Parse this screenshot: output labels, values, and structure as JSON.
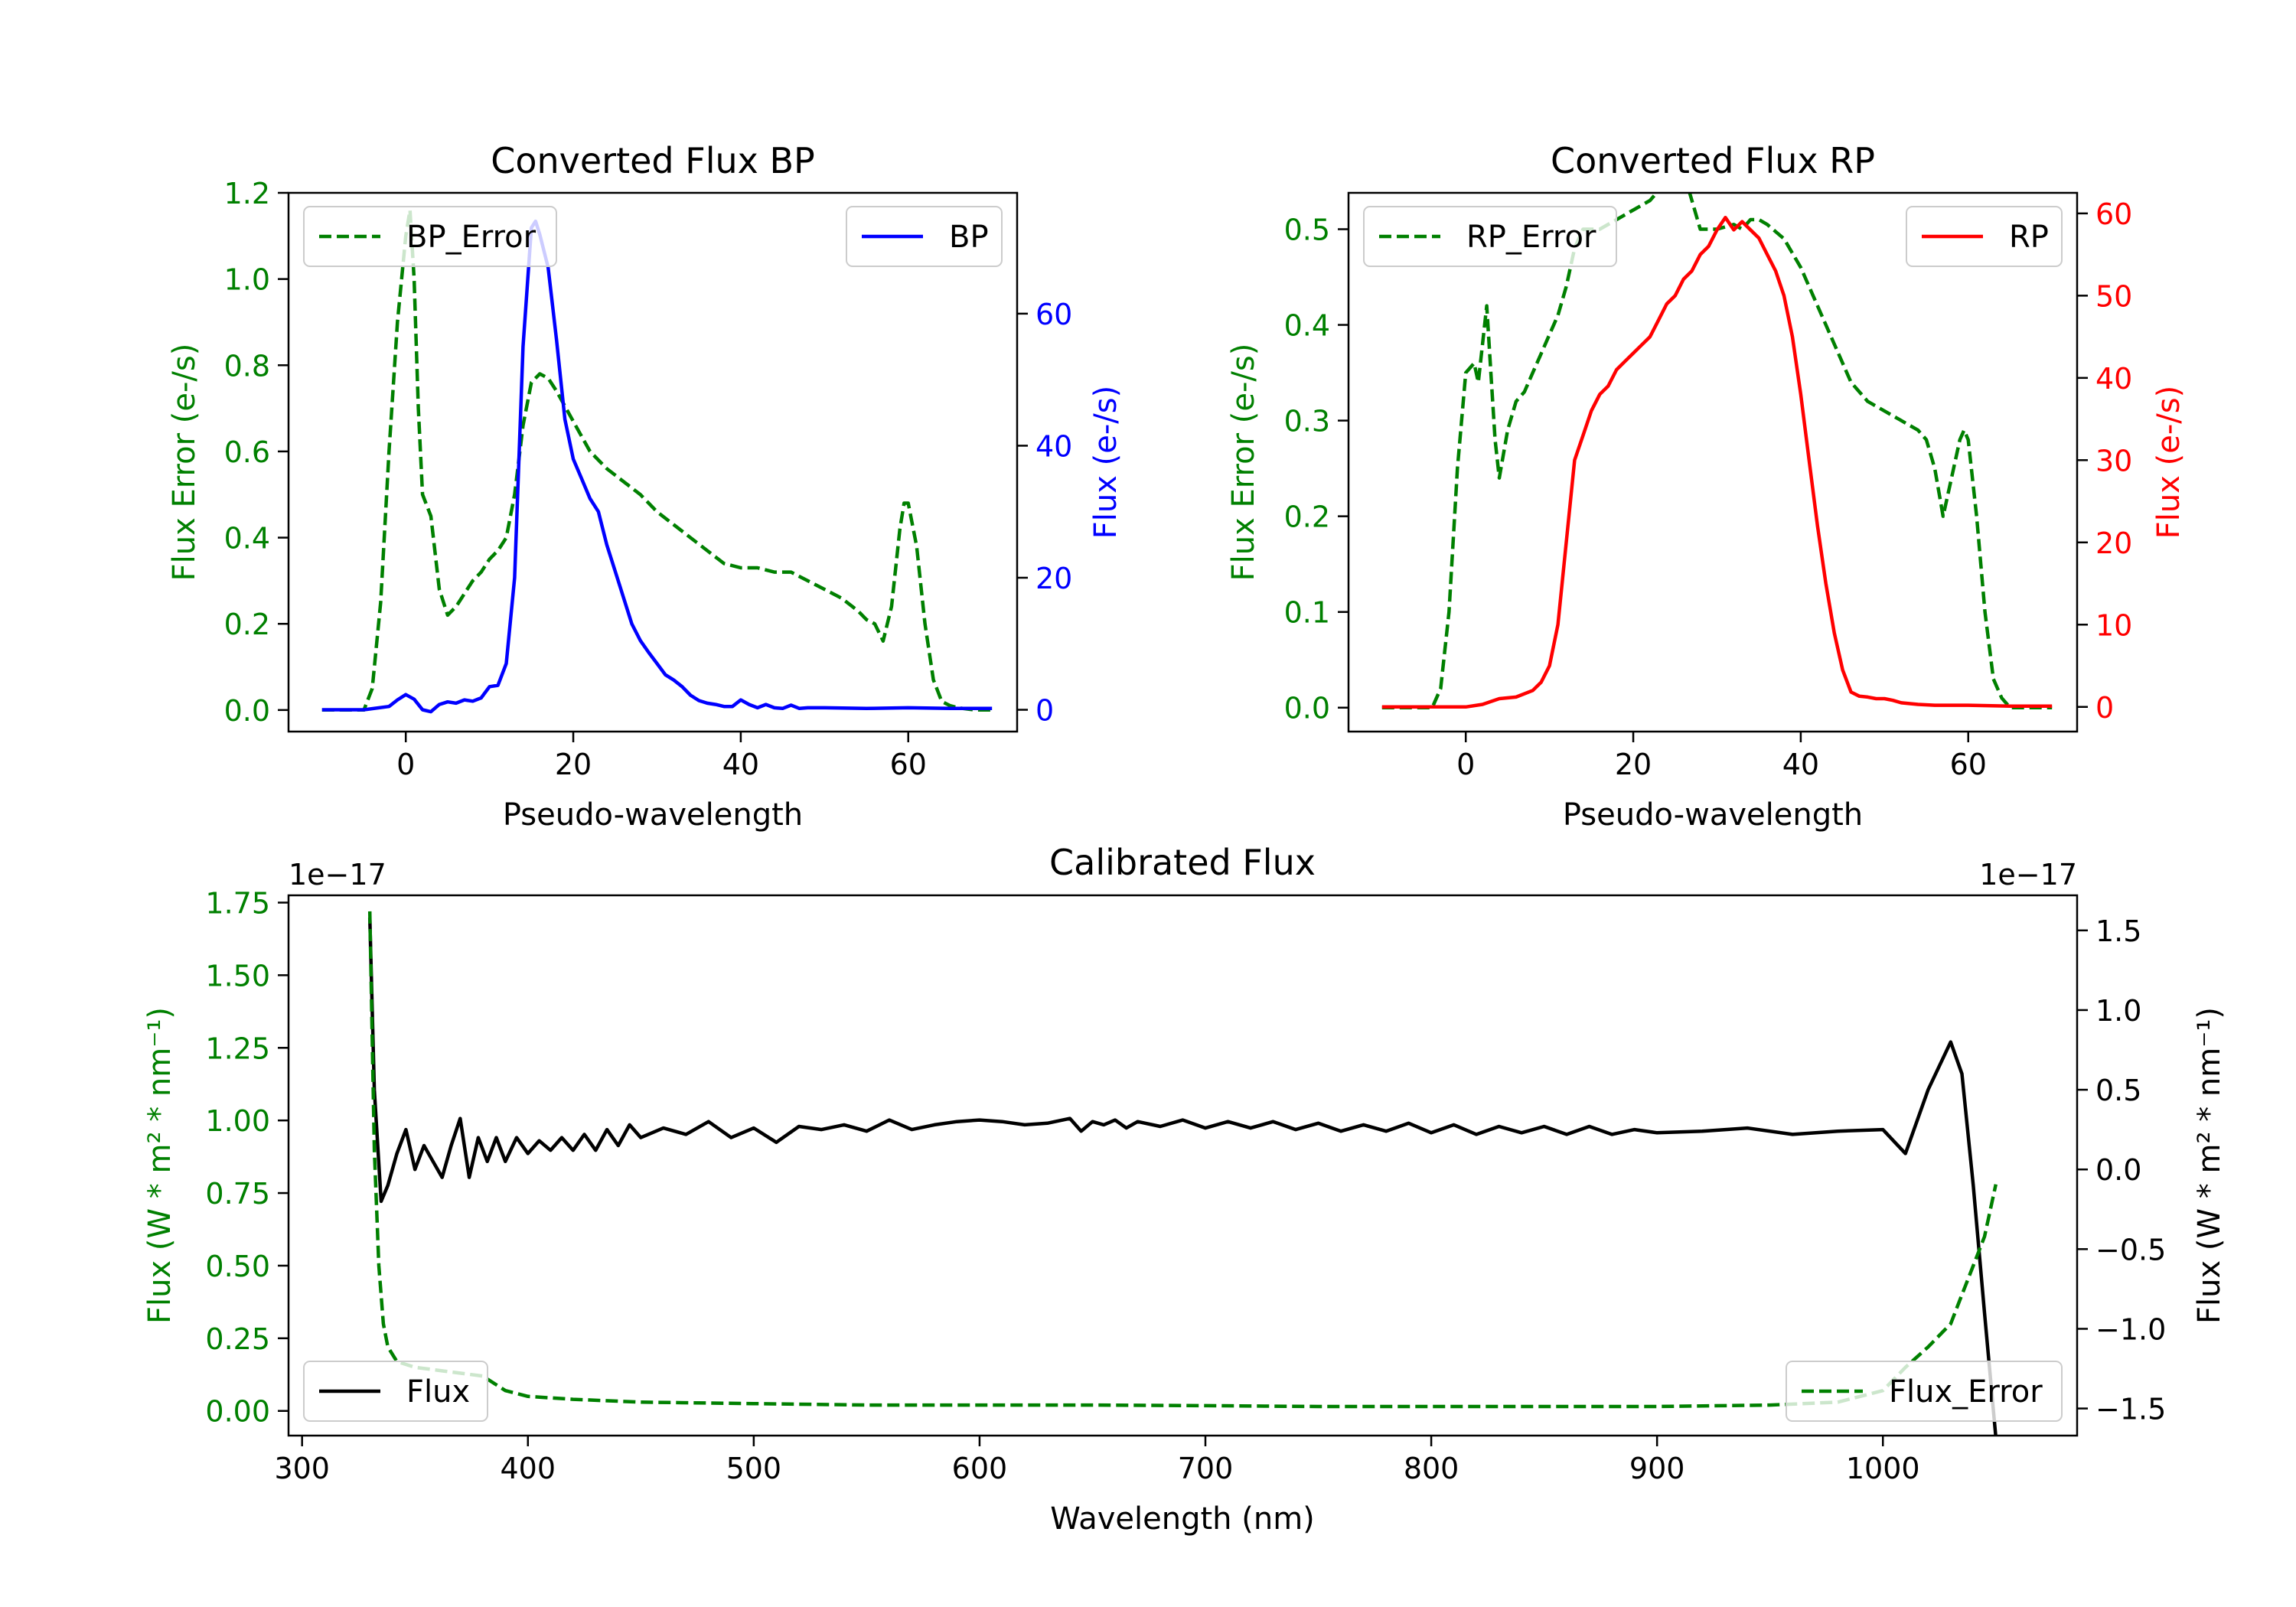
{
  "chart_data": [
    {
      "id": "bp",
      "type": "line",
      "title": "Converted Flux BP",
      "xlabel": "Pseudo-wavelength",
      "ylabel_left": "Flux Error (e-/s)",
      "ylabel_right": "Flux (e-/s)",
      "xlim": [
        -14,
        73
      ],
      "ylim_left": [
        -0.05,
        1.2
      ],
      "ylim_right": [
        -3.3,
        78.3
      ],
      "xticks": [
        0,
        20,
        40,
        60
      ],
      "yticks_left": [
        0.0,
        0.2,
        0.4,
        0.6,
        0.8,
        1.0,
        1.2
      ],
      "yticks_right": [
        0,
        20,
        40,
        60
      ],
      "left_color": "#008000",
      "right_color": "#0000ff",
      "series": [
        {
          "name": "BP_Error",
          "axis": "left",
          "style": "dashed",
          "color": "#008000",
          "x": [
            -10,
            -5,
            -4,
            -3,
            -2,
            -1,
            0,
            0.5,
            1,
            1.5,
            2,
            3,
            4,
            5,
            6,
            7,
            8,
            9,
            10,
            11,
            12,
            13,
            14,
            15,
            16,
            17,
            18,
            20,
            22,
            24,
            26,
            28,
            30,
            32,
            34,
            36,
            38,
            40,
            42,
            44,
            46,
            48,
            50,
            52,
            54,
            55,
            56,
            57,
            58,
            59,
            59.5,
            60,
            61,
            62,
            63,
            64,
            65,
            66,
            68,
            70
          ],
          "y": [
            0,
            0,
            0.05,
            0.25,
            0.6,
            0.9,
            1.1,
            1.16,
            1.0,
            0.7,
            0.5,
            0.45,
            0.28,
            0.22,
            0.24,
            0.27,
            0.3,
            0.32,
            0.35,
            0.37,
            0.4,
            0.5,
            0.66,
            0.76,
            0.78,
            0.77,
            0.74,
            0.67,
            0.6,
            0.56,
            0.53,
            0.5,
            0.46,
            0.43,
            0.4,
            0.37,
            0.34,
            0.33,
            0.33,
            0.32,
            0.32,
            0.3,
            0.28,
            0.26,
            0.23,
            0.21,
            0.2,
            0.16,
            0.24,
            0.42,
            0.48,
            0.48,
            0.38,
            0.2,
            0.07,
            0.02,
            0.01,
            0.005,
            0,
            0
          ]
        },
        {
          "name": "BP",
          "axis": "right",
          "style": "solid",
          "color": "#0000ff",
          "x": [
            -10,
            -5,
            -2,
            -1,
            0,
            1,
            2,
            3,
            4,
            5,
            6,
            7,
            8,
            9,
            10,
            11,
            12,
            13,
            14,
            15,
            15.5,
            16,
            17,
            18,
            19,
            20,
            21,
            22,
            23,
            24,
            25,
            26,
            27,
            28,
            29,
            30,
            31,
            32,
            33,
            34,
            35,
            36,
            37,
            38,
            39,
            40,
            41,
            42,
            43,
            44,
            45,
            46,
            47,
            48,
            50,
            55,
            60,
            65,
            70
          ],
          "y": [
            0,
            0,
            0.5,
            1.5,
            2.3,
            1.6,
            0,
            -0.3,
            0.8,
            1.2,
            1.0,
            1.5,
            1.3,
            1.8,
            3.5,
            3.7,
            7,
            20,
            55,
            73,
            74,
            72,
            67,
            56,
            44,
            38,
            35,
            32,
            30,
            25,
            21,
            17,
            13,
            10.5,
            8.7,
            7,
            5.3,
            4.5,
            3.5,
            2.2,
            1.4,
            1,
            0.8,
            0.5,
            0.5,
            1.5,
            0.8,
            0.3,
            0.8,
            0.3,
            0.2,
            0.7,
            0.2,
            0.3,
            0.3,
            0.2,
            0.3,
            0.2,
            0.2
          ]
        }
      ],
      "legends": [
        {
          "label": "BP_Error",
          "series": "BP_Error",
          "loc": "upper left"
        },
        {
          "label": "BP",
          "series": "BP",
          "loc": "upper right"
        }
      ]
    },
    {
      "id": "rp",
      "type": "line",
      "title": "Converted Flux RP",
      "xlabel": "Pseudo-wavelength",
      "ylabel_left": "Flux Error (e-/s)",
      "ylabel_right": "Flux (e-/s)",
      "xlim": [
        -14,
        73
      ],
      "ylim_left": [
        -0.025,
        0.538
      ],
      "ylim_right": [
        -3,
        62.5
      ],
      "xticks": [
        0,
        20,
        40,
        60
      ],
      "yticks_left": [
        0.0,
        0.1,
        0.2,
        0.3,
        0.4,
        0.5
      ],
      "yticks_right": [
        0,
        10,
        20,
        30,
        40,
        50,
        60
      ],
      "left_color": "#008000",
      "right_color": "#ff0000",
      "series": [
        {
          "name": "RP_Error",
          "axis": "left",
          "style": "dashed",
          "color": "#008000",
          "x": [
            -10,
            -4,
            -3,
            -2,
            -1,
            0,
            1,
            1.5,
            2,
            2.5,
            3,
            3.5,
            4,
            5,
            6,
            7,
            8,
            9,
            10,
            11,
            12,
            13,
            14,
            16,
            18,
            20,
            22,
            24,
            26,
            28,
            30,
            32,
            33,
            34,
            35,
            36,
            38,
            40,
            42,
            44,
            46,
            48,
            50,
            52,
            54,
            55,
            56,
            57,
            58,
            59,
            59.5,
            60,
            61,
            62,
            63,
            64,
            65,
            66,
            68,
            70
          ],
          "y": [
            0,
            0,
            0.02,
            0.1,
            0.25,
            0.35,
            0.36,
            0.34,
            0.38,
            0.42,
            0.35,
            0.28,
            0.24,
            0.29,
            0.32,
            0.33,
            0.35,
            0.37,
            0.39,
            0.41,
            0.44,
            0.48,
            0.5,
            0.5,
            0.51,
            0.52,
            0.53,
            0.55,
            0.56,
            0.5,
            0.5,
            0.505,
            0.5,
            0.51,
            0.51,
            0.505,
            0.49,
            0.46,
            0.42,
            0.38,
            0.34,
            0.32,
            0.31,
            0.3,
            0.29,
            0.28,
            0.25,
            0.2,
            0.24,
            0.28,
            0.29,
            0.28,
            0.2,
            0.1,
            0.03,
            0.01,
            0,
            0,
            0,
            0
          ]
        },
        {
          "name": "RP",
          "axis": "right",
          "style": "solid",
          "color": "#ff0000",
          "x": [
            -10,
            -5,
            0,
            2,
            4,
            6,
            8,
            9,
            10,
            11,
            12,
            13,
            14,
            15,
            16,
            17,
            18,
            19,
            20,
            21,
            22,
            23,
            24,
            25,
            26,
            27,
            28,
            29,
            30,
            31,
            32,
            33,
            34,
            35,
            36,
            37,
            38,
            39,
            40,
            41,
            42,
            43,
            44,
            45,
            46,
            47,
            48,
            49,
            50,
            51,
            52,
            54,
            56,
            60,
            65,
            70
          ],
          "y": [
            0,
            0,
            0,
            0.3,
            1,
            1.2,
            2,
            3,
            5,
            10,
            20,
            30,
            33,
            36,
            38,
            39,
            41,
            42,
            43,
            44,
            45,
            47,
            49,
            50,
            52,
            53,
            55,
            56,
            58,
            59.5,
            58,
            59,
            58,
            57,
            55,
            53,
            50,
            45,
            38,
            30,
            22,
            15,
            9,
            4.5,
            1.8,
            1.3,
            1.2,
            1,
            1,
            0.8,
            0.5,
            0.3,
            0.2,
            0.2,
            0.1,
            0.1
          ]
        }
      ],
      "legends": [
        {
          "label": "RP_Error",
          "series": "RP_Error",
          "loc": "upper left"
        },
        {
          "label": "RP",
          "series": "RP",
          "loc": "upper right"
        }
      ]
    },
    {
      "id": "cal",
      "type": "line",
      "title": "Calibrated Flux",
      "xlabel": "Wavelength (nm)",
      "ylabel_left": "Flux (W * m² * nm⁻¹)",
      "ylabel_right": "Flux (W * m² * nm⁻¹)",
      "offset_left": "1e−17",
      "offset_right": "1e−17",
      "xlim": [
        294,
        1086
      ],
      "ylim_left": [
        -0.085,
        1.775
      ],
      "ylim_right": [
        -1.67,
        1.72
      ],
      "xticks": [
        300,
        400,
        500,
        600,
        700,
        800,
        900,
        1000
      ],
      "yticks_left": [
        0.0,
        0.25,
        0.5,
        0.75,
        1.0,
        1.25,
        1.5,
        1.75
      ],
      "ytick_labels_left": [
        "0.00",
        "0.25",
        "0.50",
        "0.75",
        "1.00",
        "1.25",
        "1.50",
        "1.75"
      ],
      "yticks_right": [
        -1.5,
        -1.0,
        -0.5,
        0.0,
        0.5,
        1.0,
        1.5
      ],
      "ytick_labels_right": [
        "−1.5",
        "−1.0",
        "−0.5",
        "0.0",
        "0.5",
        "1.0",
        "1.5"
      ],
      "left_color": "#008000",
      "right_color": "#000000",
      "series": [
        {
          "name": "Flux",
          "axis": "right",
          "style": "solid",
          "color": "#000000",
          "x": [
            330,
            332,
            335,
            338,
            342,
            346,
            350,
            354,
            358,
            362,
            366,
            370,
            374,
            378,
            382,
            386,
            390,
            395,
            400,
            405,
            410,
            415,
            420,
            425,
            430,
            435,
            440,
            445,
            450,
            460,
            470,
            480,
            490,
            500,
            510,
            520,
            530,
            540,
            550,
            560,
            570,
            580,
            590,
            600,
            610,
            620,
            630,
            640,
            645,
            650,
            655,
            660,
            665,
            670,
            680,
            690,
            700,
            710,
            720,
            730,
            740,
            750,
            760,
            770,
            780,
            790,
            800,
            810,
            820,
            830,
            840,
            850,
            860,
            870,
            880,
            890,
            900,
            920,
            940,
            960,
            980,
            1000,
            1010,
            1020,
            1030,
            1035,
            1040,
            1045,
            1050
          ],
          "y": [
            1.58,
            0.5,
            -0.2,
            -0.1,
            0.1,
            0.25,
            0.0,
            0.15,
            0.05,
            -0.05,
            0.15,
            0.32,
            -0.05,
            0.2,
            0.05,
            0.2,
            0.05,
            0.2,
            0.1,
            0.18,
            0.12,
            0.2,
            0.12,
            0.22,
            0.12,
            0.25,
            0.15,
            0.28,
            0.2,
            0.26,
            0.22,
            0.3,
            0.2,
            0.26,
            0.17,
            0.27,
            0.25,
            0.28,
            0.24,
            0.31,
            0.25,
            0.28,
            0.3,
            0.31,
            0.3,
            0.28,
            0.29,
            0.32,
            0.24,
            0.3,
            0.28,
            0.31,
            0.26,
            0.3,
            0.27,
            0.31,
            0.26,
            0.3,
            0.26,
            0.3,
            0.25,
            0.29,
            0.24,
            0.28,
            0.24,
            0.29,
            0.23,
            0.28,
            0.22,
            0.27,
            0.23,
            0.27,
            0.22,
            0.27,
            0.22,
            0.25,
            0.23,
            0.24,
            0.26,
            0.22,
            0.24,
            0.25,
            0.1,
            0.5,
            0.8,
            0.6,
            -0.1,
            -0.9,
            -1.68
          ]
        },
        {
          "name": "Flux_Error",
          "axis": "left",
          "style": "dashed",
          "color": "#008000",
          "x": [
            330,
            332,
            334,
            336,
            338,
            342,
            346,
            350,
            360,
            370,
            380,
            390,
            400,
            420,
            450,
            500,
            550,
            600,
            650,
            700,
            750,
            800,
            850,
            900,
            950,
            980,
            1000,
            1010,
            1020,
            1030,
            1035,
            1040,
            1045,
            1050
          ],
          "y": [
            1.72,
            0.9,
            0.5,
            0.3,
            0.22,
            0.17,
            0.16,
            0.15,
            0.14,
            0.13,
            0.12,
            0.07,
            0.05,
            0.04,
            0.03,
            0.025,
            0.02,
            0.02,
            0.02,
            0.018,
            0.015,
            0.015,
            0.015,
            0.015,
            0.02,
            0.03,
            0.07,
            0.15,
            0.22,
            0.3,
            0.4,
            0.5,
            0.6,
            0.78
          ]
        }
      ],
      "legends": [
        {
          "label": "Flux",
          "series": "Flux",
          "loc": "lower left"
        },
        {
          "label": "Flux_Error",
          "series": "Flux_Error",
          "loc": "lower right"
        }
      ]
    }
  ]
}
